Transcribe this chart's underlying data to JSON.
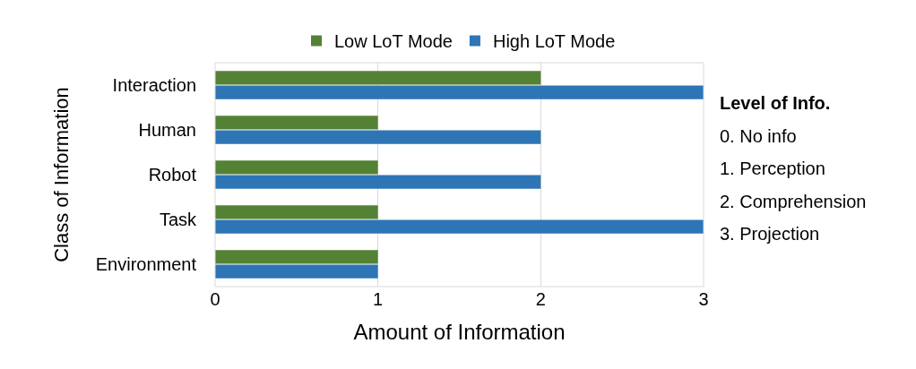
{
  "chart_data": {
    "type": "bar",
    "orientation": "horizontal",
    "xlabel": "Amount of Information",
    "ylabel": "Class of Information",
    "categories": [
      "Interaction",
      "Human",
      "Robot",
      "Task",
      "Environment"
    ],
    "series": [
      {
        "name": "Low LoT Mode",
        "color": "#548235",
        "values": [
          2,
          1,
          1,
          1,
          1
        ]
      },
      {
        "name": "High LoT Mode",
        "color": "#2e75b6",
        "values": [
          3,
          2,
          2,
          3,
          1
        ]
      }
    ],
    "xlim": [
      0,
      3
    ],
    "xticks": [
      0,
      1,
      2,
      3
    ],
    "grid": "x",
    "legend": "top",
    "annotations": [
      "Level of Info.",
      "0. No info",
      "1. Perception",
      "2. Comprehension",
      "3. Projection"
    ]
  }
}
